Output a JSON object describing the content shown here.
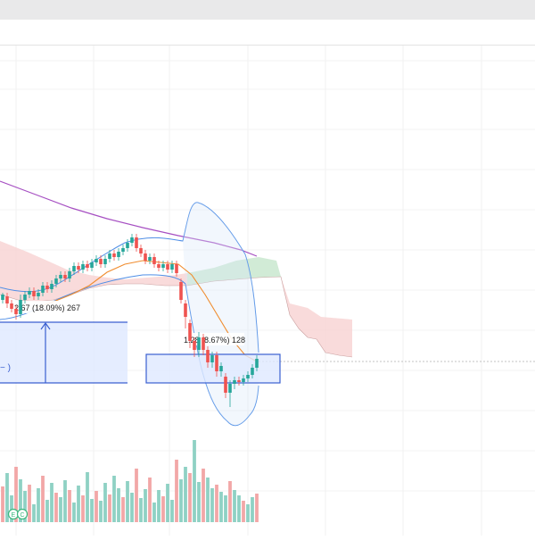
{
  "window": {
    "topbar_color": "#e9e9ea"
  },
  "measurements": [
    {
      "id": "left",
      "label": "2.67 (18.09%) 267",
      "arrow_direction": "up",
      "fill": "#dfe8ff",
      "border": "#3a5fd0",
      "partial_text": "− )"
    },
    {
      "id": "right",
      "label": "1.28 (8.67%) 128",
      "fill": "#dfe8ff",
      "border": "#3a5fd0"
    }
  ],
  "indicator_badges": [
    {
      "name": "badge-1",
      "label": "E"
    },
    {
      "name": "badge-2",
      "label": "C"
    }
  ],
  "colors": {
    "up_candle": "#26a69a",
    "down_candle": "#ef5350",
    "bollinger": "#4f8ee6",
    "ma_long": "#a64fc2",
    "ma_short": "#f08c2e",
    "cloud_green": "#c9e8cf",
    "cloud_red": "#f8d2d2",
    "vol_up": "#8fd1c4",
    "vol_down": "#f2a7a7"
  }
}
